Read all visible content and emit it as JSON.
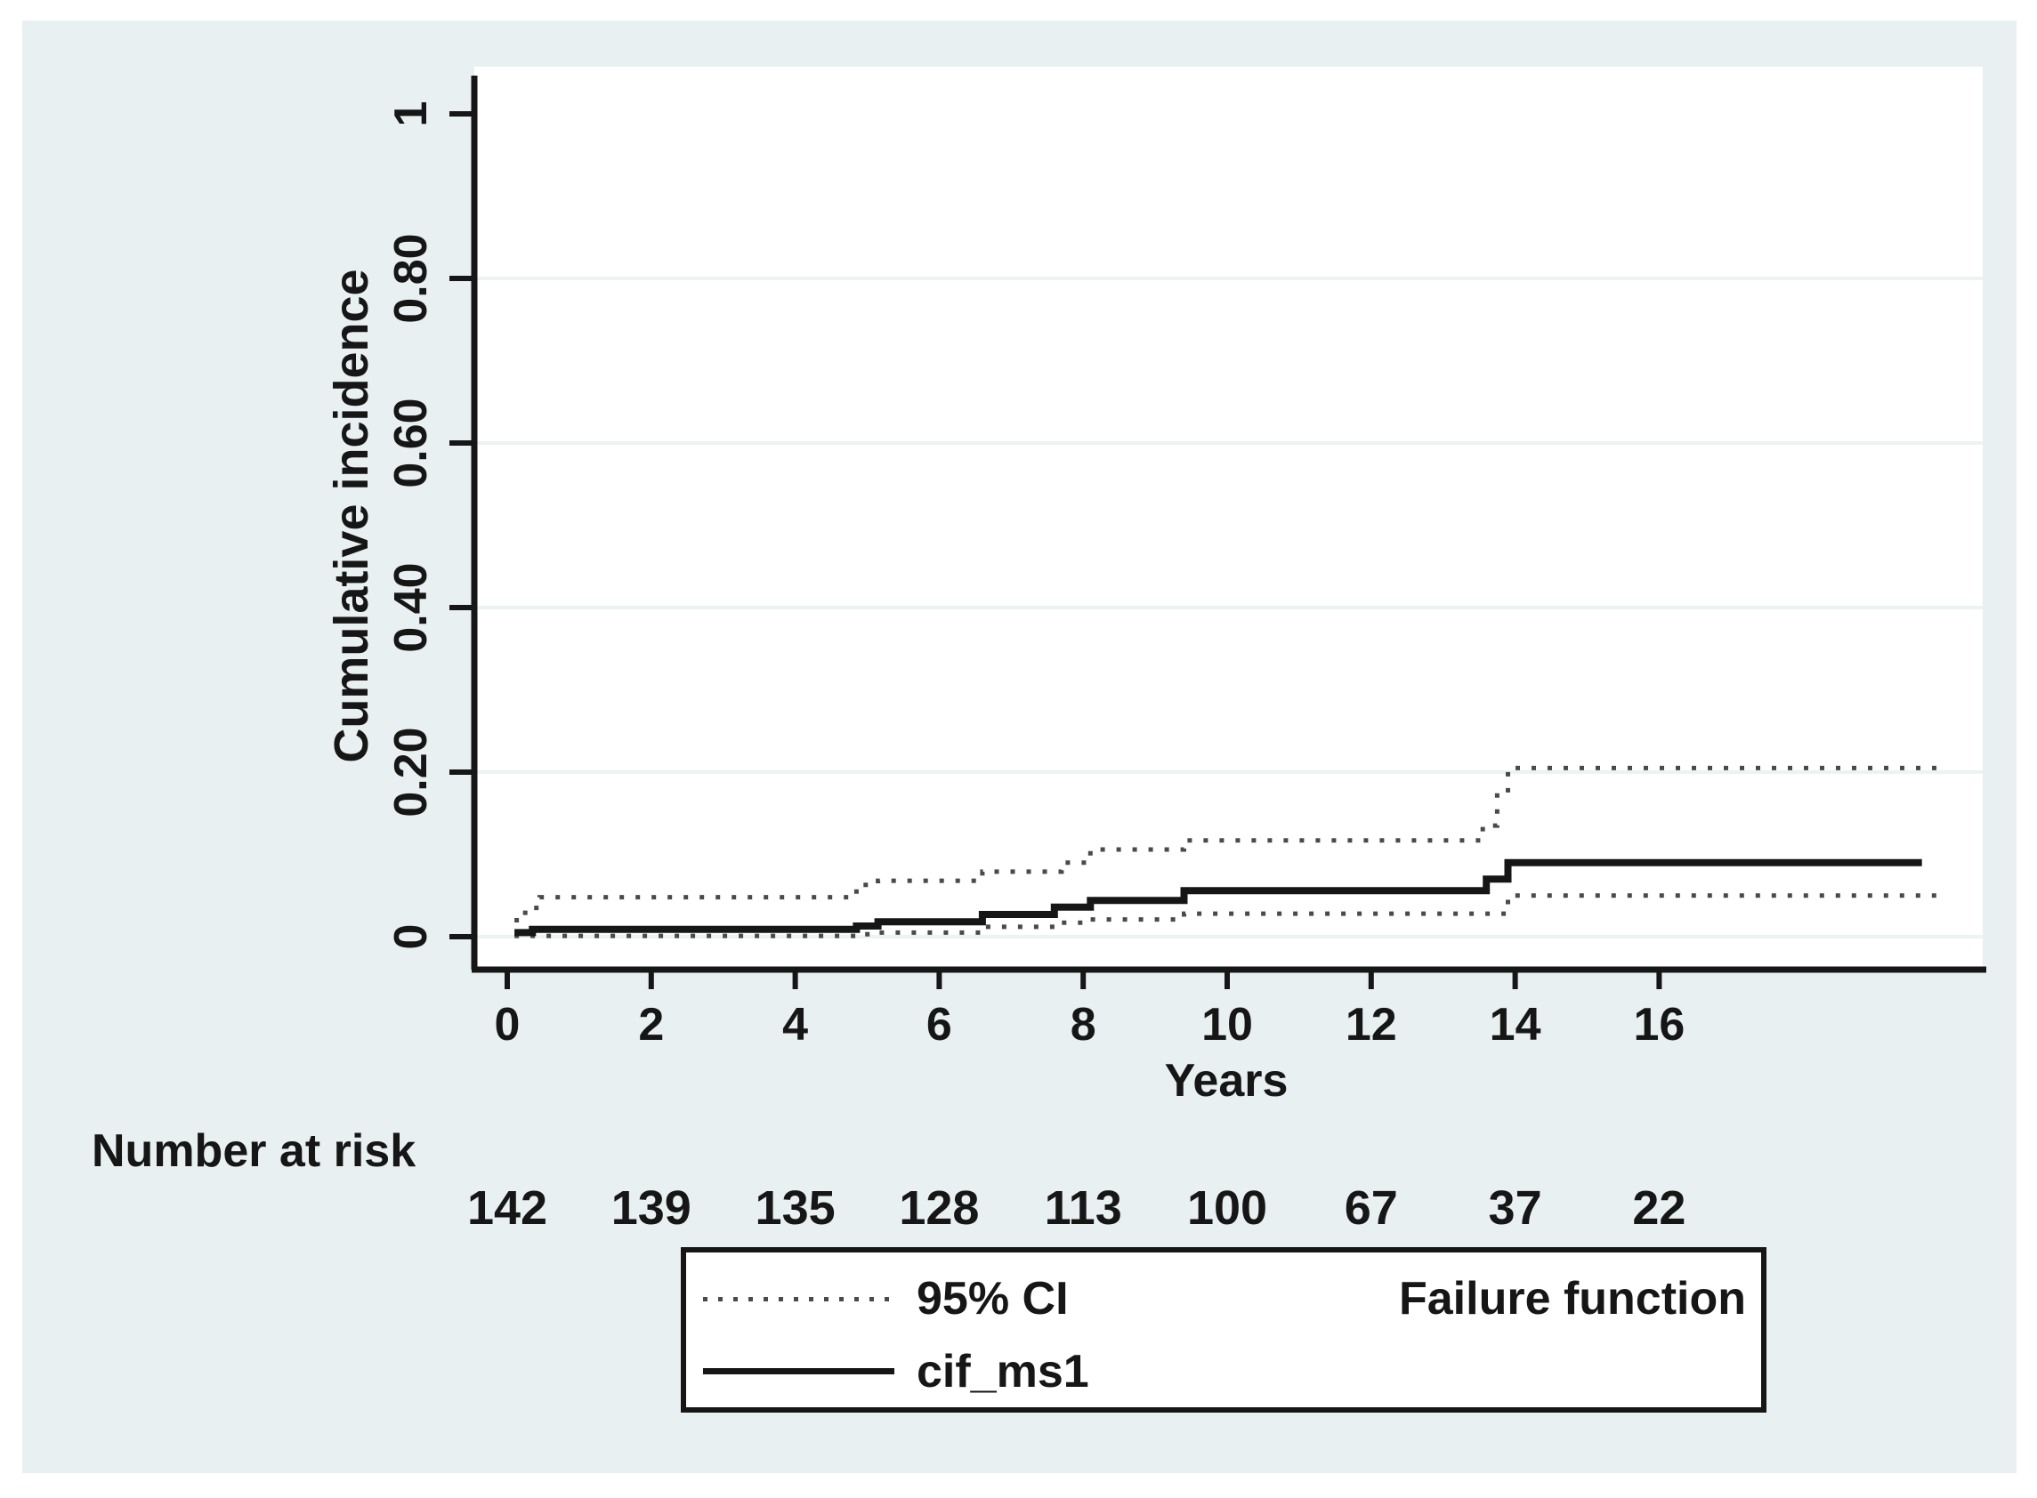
{
  "colors": {
    "panel_background": "#e9f0f1",
    "plot_background": "#ffffff",
    "axis": "#161616",
    "gridline": "#edf2f3",
    "solid_line": "#161616",
    "ci_line": "#4a4a4a",
    "text": "#161616",
    "legend_background": "#ffffff",
    "legend_border": "#161616"
  },
  "chart_data": {
    "type": "line",
    "subtype": "cumulative-incidence-step-function",
    "title": "",
    "xlabel": "Years",
    "ylabel": "Cumulative incidence",
    "xlim": [
      0,
      20.5
    ],
    "ylim": [
      0,
      1
    ],
    "grid": "horizontal",
    "x_ticks": [
      0,
      2,
      4,
      6,
      8,
      10,
      12,
      14,
      16
    ],
    "y_ticks": {
      "values": [
        0,
        0.2,
        0.4,
        0.6,
        0.8,
        1
      ],
      "labels": [
        "0",
        "0.20",
        "0.40",
        "0.60",
        "0.80",
        "1"
      ]
    },
    "grid_y": [
      0,
      0.2,
      0.4,
      0.6,
      0.8
    ],
    "series": [
      {
        "name": "cif_ms1",
        "style": "solid",
        "end": 19.65,
        "steps": [
          [
            0.1,
            0.005
          ],
          [
            0.35,
            0.009
          ],
          [
            4.85,
            0.013
          ],
          [
            5.15,
            0.018
          ],
          [
            6.6,
            0.027
          ],
          [
            7.6,
            0.036
          ],
          [
            8.1,
            0.044
          ],
          [
            9.4,
            0.056
          ],
          [
            13.6,
            0.07
          ],
          [
            13.9,
            0.09
          ]
        ]
      },
      {
        "name": "95% CI upper",
        "style": "dotted",
        "end": 19.95,
        "steps": [
          [
            0.1,
            0.02
          ],
          [
            0.25,
            0.035
          ],
          [
            0.45,
            0.048
          ],
          [
            4.85,
            0.063
          ],
          [
            5.15,
            0.068
          ],
          [
            6.6,
            0.079
          ],
          [
            7.7,
            0.09
          ],
          [
            8.1,
            0.106
          ],
          [
            9.4,
            0.117
          ],
          [
            13.55,
            0.135
          ],
          [
            13.75,
            0.175
          ],
          [
            13.9,
            0.205
          ]
        ]
      },
      {
        "name": "95% CI lower",
        "style": "dotted",
        "end": 19.95,
        "steps": [
          [
            0.1,
            0.001
          ],
          [
            4.85,
            0.003
          ],
          [
            5.15,
            0.005
          ],
          [
            6.6,
            0.012
          ],
          [
            7.7,
            0.017
          ],
          [
            8.1,
            0.021
          ],
          [
            9.4,
            0.028
          ],
          [
            13.9,
            0.05
          ]
        ]
      }
    ],
    "number_at_risk": {
      "label": "Number at risk",
      "years": [
        0,
        2,
        4,
        6,
        8,
        10,
        12,
        14,
        16
      ],
      "values": [
        142,
        139,
        135,
        128,
        113,
        100,
        67,
        37,
        22
      ]
    },
    "legend": {
      "items": [
        {
          "label": "95% CI",
          "style": "dotted"
        },
        {
          "label": "cif_ms1",
          "style": "solid"
        }
      ],
      "note": "Failure function",
      "position": "bottom"
    }
  }
}
